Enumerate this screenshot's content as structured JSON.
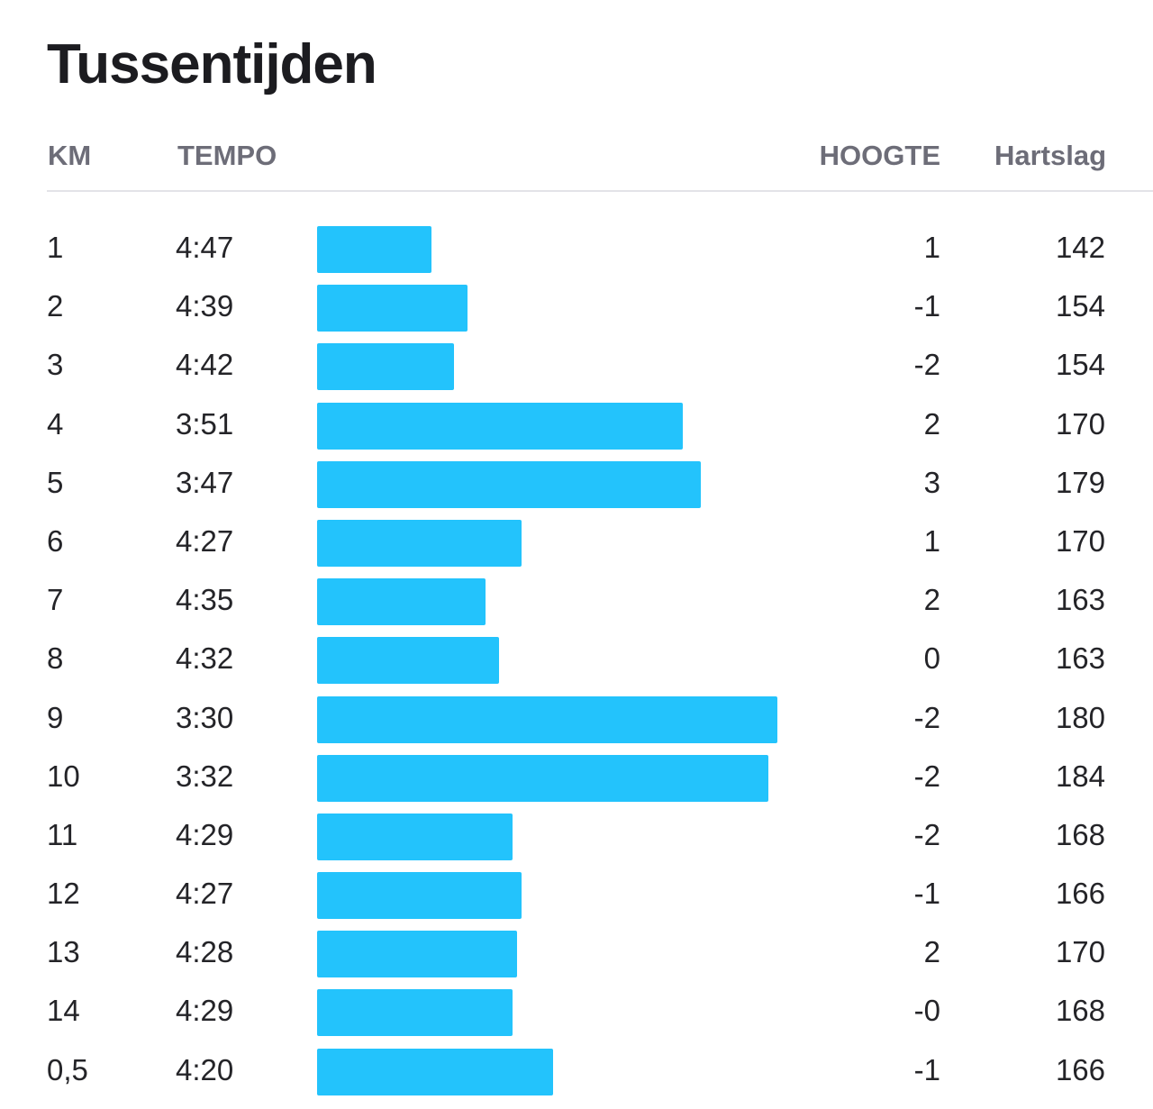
{
  "title": "Tussentijden",
  "columns": {
    "km": "KM",
    "tempo": "TEMPO",
    "hoogte": "HOOGTE",
    "hartslag": "Hartslag"
  },
  "colors": {
    "bar": "#23c3fc",
    "header_text": "#6d6d78",
    "text": "#242428",
    "divider": "#e3e3e8"
  },
  "splits": [
    {
      "km": "1",
      "tempo": "4:47",
      "hoogte": "1",
      "hartslag": "142"
    },
    {
      "km": "2",
      "tempo": "4:39",
      "hoogte": "-1",
      "hartslag": "154"
    },
    {
      "km": "3",
      "tempo": "4:42",
      "hoogte": "-2",
      "hartslag": "154"
    },
    {
      "km": "4",
      "tempo": "3:51",
      "hoogte": "2",
      "hartslag": "170"
    },
    {
      "km": "5",
      "tempo": "3:47",
      "hoogte": "3",
      "hartslag": "179"
    },
    {
      "km": "6",
      "tempo": "4:27",
      "hoogte": "1",
      "hartslag": "170"
    },
    {
      "km": "7",
      "tempo": "4:35",
      "hoogte": "2",
      "hartslag": "163"
    },
    {
      "km": "8",
      "tempo": "4:32",
      "hoogte": "0",
      "hartslag": "163"
    },
    {
      "km": "9",
      "tempo": "3:30",
      "hoogte": "-2",
      "hartslag": "180"
    },
    {
      "km": "10",
      "tempo": "3:32",
      "hoogte": "-2",
      "hartslag": "184"
    },
    {
      "km": "11",
      "tempo": "4:29",
      "hoogte": "-2",
      "hartslag": "168"
    },
    {
      "km": "12",
      "tempo": "4:27",
      "hoogte": "-1",
      "hartslag": "166"
    },
    {
      "km": "13",
      "tempo": "4:28",
      "hoogte": "2",
      "hartslag": "170"
    },
    {
      "km": "14",
      "tempo": "4:29",
      "hoogte": "-0",
      "hartslag": "168"
    },
    {
      "km": "0,5",
      "tempo": "4:20",
      "hoogte": "-1",
      "hartslag": "166"
    }
  ]
}
